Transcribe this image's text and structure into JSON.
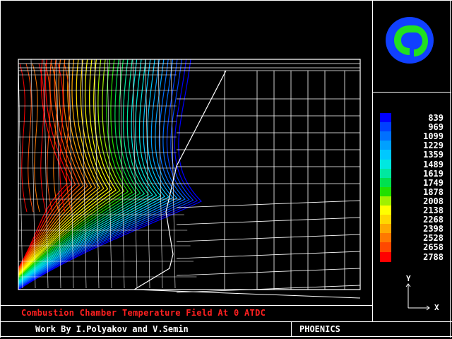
{
  "caption": {
    "text": "Combustion Chamber Temperature Field At 0 ATDC",
    "color": "#ff2020"
  },
  "credits": {
    "text": "Work By I.Polyakov and V.Semin"
  },
  "brand": {
    "text": "PHOENICS"
  },
  "axes": {
    "x_label": "X",
    "y_label": "Y"
  },
  "legend": {
    "items": [
      {
        "value": "839",
        "color": "#0000ff"
      },
      {
        "value": "969",
        "color": "#0040ff"
      },
      {
        "value": "1099",
        "color": "#0070ff"
      },
      {
        "value": "1229",
        "color": "#00a0ff"
      },
      {
        "value": "1359",
        "color": "#00c8ff"
      },
      {
        "value": "1489",
        "color": "#00e8e0"
      },
      {
        "value": "1619",
        "color": "#00e8a0"
      },
      {
        "value": "1749",
        "color": "#00e050"
      },
      {
        "value": "1878",
        "color": "#20e000"
      },
      {
        "value": "2008",
        "color": "#a0f000"
      },
      {
        "value": "2138",
        "color": "#ffff00"
      },
      {
        "value": "2268",
        "color": "#ffd800"
      },
      {
        "value": "2398",
        "color": "#ffa800"
      },
      {
        "value": "2528",
        "color": "#ff7800"
      },
      {
        "value": "2658",
        "color": "#ff4800"
      },
      {
        "value": "2788",
        "color": "#ff0000"
      }
    ]
  },
  "logo": {
    "outer_color": "#1040ff",
    "inner_color": "#20e020",
    "icon": "phoenics-logo-icon"
  }
}
